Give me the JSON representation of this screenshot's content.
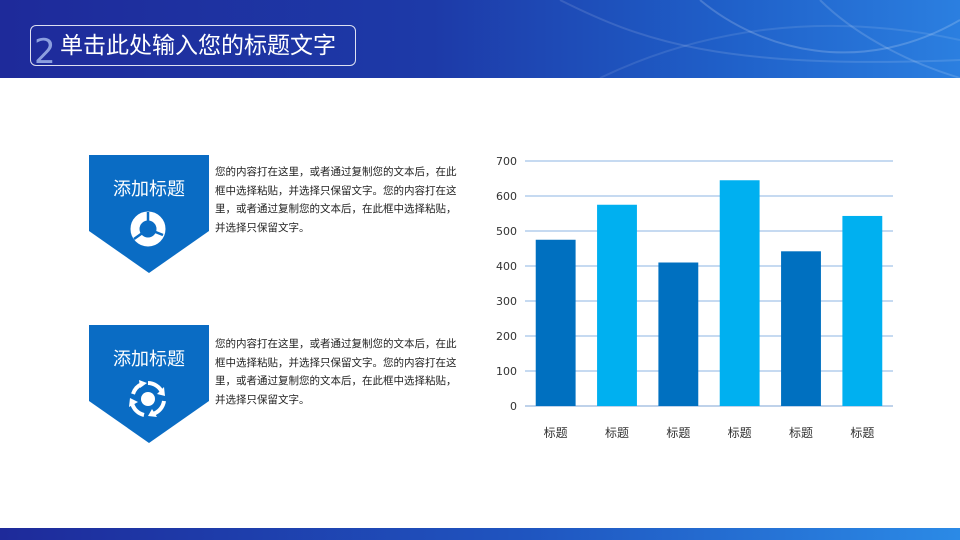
{
  "header": {
    "number": "2",
    "title": "单击此处输入您的标题文字"
  },
  "sections": [
    {
      "heading": "添加标题",
      "icon": "donut-chart-icon",
      "body": "您的内容打在这里，或者通过复制您的文本后，在此框中选择粘贴，并选择只保留文字。您的内容打在这里，或者通过复制您的文本后，在此框中选择粘贴，并选择只保留文字。"
    },
    {
      "heading": "添加标题",
      "icon": "refresh-cycle-icon",
      "body": "您的内容打在这里，或者通过复制您的文本后，在此框中选择粘贴，并选择只保留文字。您的内容打在这里，或者通过复制您的文本后，在此框中选择粘贴，并选择只保留文字。"
    }
  ],
  "colors": {
    "dark_blue": "#0070c0",
    "light_blue": "#00b0f0",
    "badge": "#0a6cc4",
    "header": "#1e2a9a"
  },
  "chart_data": {
    "type": "bar",
    "categories": [
      "标题",
      "标题",
      "标题",
      "标题",
      "标题",
      "标题"
    ],
    "values": [
      475,
      575,
      410,
      645,
      442,
      543
    ],
    "bar_colors": [
      "#0070c0",
      "#00b0f0",
      "#0070c0",
      "#00b0f0",
      "#0070c0",
      "#00b0f0"
    ],
    "yticks": [
      "0",
      "100",
      "200",
      "300",
      "400",
      "500",
      "600",
      "700"
    ],
    "ylim": [
      0,
      700
    ],
    "grid": true,
    "legend": "none"
  }
}
